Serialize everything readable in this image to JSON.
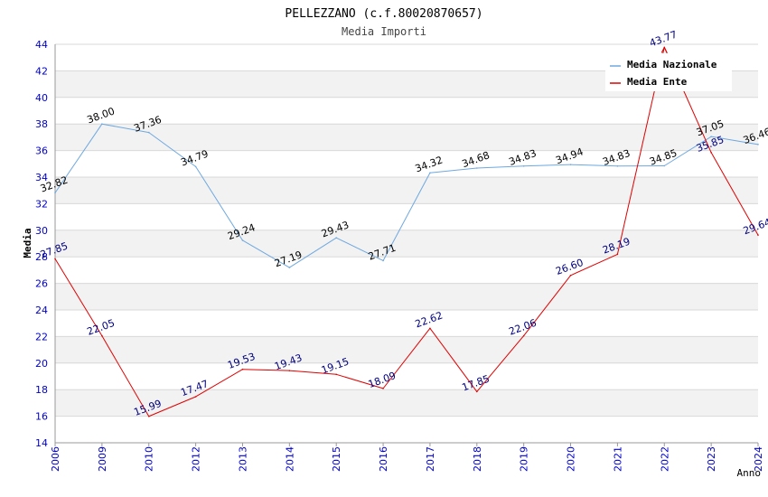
{
  "chart_data": {
    "type": "line",
    "title": "PELLEZZANO (c.f.80020870657)",
    "subtitle": "Media Importi",
    "xlabel": "Anno",
    "ylabel": "Media",
    "ylim": [
      14,
      44
    ],
    "yticks": [
      "14",
      "16",
      "18",
      "20",
      "22",
      "24",
      "26",
      "28",
      "30",
      "32",
      "34",
      "36",
      "38",
      "40",
      "42",
      "44"
    ],
    "categories": [
      "2006",
      "2009",
      "2010",
      "2012",
      "2013",
      "2014",
      "2015",
      "2016",
      "2017",
      "2018",
      "2019",
      "2020",
      "2021",
      "2022",
      "2023",
      "2024"
    ],
    "legend_position": "top-right",
    "grid": true,
    "series": [
      {
        "name": "Media Nazionale",
        "color": "#6ea8e0",
        "label_color": "#000000",
        "values": [
          32.82,
          38.0,
          37.36,
          34.79,
          29.24,
          27.19,
          29.43,
          27.71,
          34.32,
          34.68,
          34.83,
          34.94,
          34.83,
          34.85,
          37.05,
          36.46
        ],
        "labels": [
          "32.82",
          "38.00",
          "37.36",
          "34.79",
          "29.24",
          "27.19",
          "29.43",
          "27.71",
          "34.32",
          "34.68",
          "34.83",
          "34.94",
          "34.83",
          "34.85",
          "37.05",
          "36.46"
        ]
      },
      {
        "name": "Media Ente",
        "color": "#e00000",
        "label_color": "#000080",
        "values": [
          27.85,
          22.05,
          15.99,
          17.47,
          19.53,
          19.43,
          19.15,
          18.09,
          22.62,
          17.85,
          22.06,
          26.6,
          28.19,
          43.77,
          35.85,
          29.64
        ],
        "labels": [
          "27.85",
          "22.05",
          "15.99",
          "17.47",
          "19.53",
          "19.43",
          "19.15",
          "18.09",
          "22.62",
          "17.85",
          "22.06",
          "26.60",
          "28.19",
          "43.77",
          "35.85",
          "29.64"
        ]
      }
    ]
  },
  "colors": {
    "axis_tick_text": "#0000cc",
    "grid_band": "#f2f2f2",
    "grid_line": "#d8d8d8",
    "axis": "#999999"
  }
}
